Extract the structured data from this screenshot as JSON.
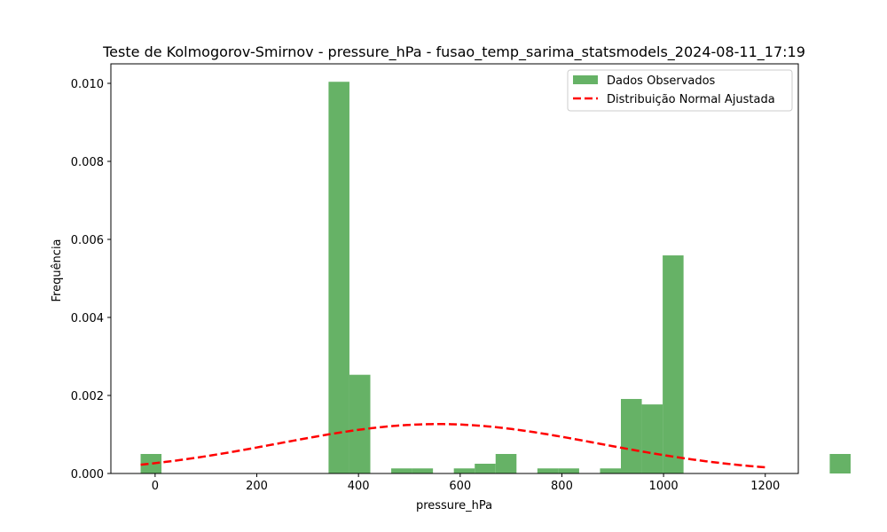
{
  "chart_data": {
    "type": "bar",
    "title": "Teste de Kolmogorov-Smirnov - pressure_hPa - fusao_temp_sarima_statsmodels_2024-08-11_17:19",
    "xlabel": "pressure_hPa",
    "ylabel": "Frequência",
    "xlim": [
      -87,
      1265
    ],
    "ylim": [
      0,
      0.0105
    ],
    "xticks": [
      0,
      200,
      400,
      600,
      800,
      1000,
      1200
    ],
    "yticks": [
      0.0,
      0.002,
      0.004,
      0.006,
      0.008,
      0.01
    ],
    "ytick_labels": [
      "0.000",
      "0.002",
      "0.004",
      "0.006",
      "0.008",
      "0.010"
    ],
    "legend_position": "top-right",
    "colors": {
      "bars": "#66b266",
      "curve": "#ff0000",
      "axes": "#000000"
    },
    "histogram": {
      "name": "Dados Observados",
      "bin_start": -28.5,
      "bin_width": 41.07,
      "values": [
        0.0005,
        0,
        0,
        0,
        0,
        0,
        0,
        0,
        0,
        0.01004,
        0.00253,
        0,
        0.00013,
        0.00013,
        0,
        0.00013,
        0.00025,
        0.0005,
        0,
        0.00013,
        0.00013,
        0,
        0.00013,
        0.00191,
        0.00177,
        0.00559,
        0,
        0,
        0,
        0,
        0,
        0,
        0,
        0.0005
      ]
    },
    "normal_fit": {
      "name": "Distribuição Normal Ajustada",
      "mean": 557,
      "std": 315,
      "x_range": [
        -28.5,
        1200
      ]
    }
  }
}
